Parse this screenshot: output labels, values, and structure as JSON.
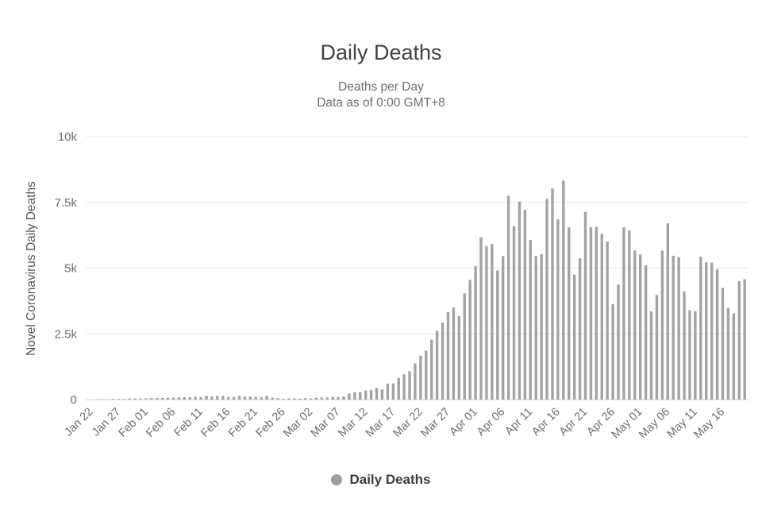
{
  "header": {
    "title": "Daily Deaths",
    "subtitle_line1": "Deaths per Day",
    "subtitle_line2": "Data as of 0:00 GMT+8"
  },
  "legend": {
    "label": "Daily Deaths",
    "dot_color": "#9e9e9e"
  },
  "chart_data": {
    "type": "bar",
    "title": "Daily Deaths",
    "subtitle": "Deaths per Day - Data as of 0:00 GMT+8",
    "xlabel": "",
    "ylabel": "Novel Coronavirus Daily Deaths",
    "legend_entries": [
      "Daily Deaths"
    ],
    "legend_position": "bottom",
    "grid": true,
    "ylim": [
      0,
      10000
    ],
    "ytick_values": [
      0,
      2500,
      5000,
      7500,
      10000
    ],
    "ytick_labels": [
      "0",
      "2.5k",
      "5k",
      "7.5k",
      "10k"
    ],
    "xtick_every": 5,
    "xtick_labels_shown": [
      "Jan 22",
      "Jan 27",
      "Feb 01",
      "Feb 06",
      "Feb 11",
      "Feb 16",
      "Feb 21",
      "Feb 26",
      "Mar 02",
      "Mar 07",
      "Mar 12",
      "Mar 17",
      "Mar 22",
      "Mar 27",
      "Apr 01",
      "Apr 06",
      "Apr 11",
      "Apr 16",
      "Apr 21",
      "Apr 26",
      "May 01",
      "May 06",
      "May 11",
      "May 16"
    ],
    "categories": [
      "Jan 22",
      "Jan 23",
      "Jan 24",
      "Jan 25",
      "Jan 26",
      "Jan 27",
      "Jan 28",
      "Jan 29",
      "Jan 30",
      "Jan 31",
      "Feb 01",
      "Feb 02",
      "Feb 03",
      "Feb 04",
      "Feb 05",
      "Feb 06",
      "Feb 07",
      "Feb 08",
      "Feb 09",
      "Feb 10",
      "Feb 11",
      "Feb 12",
      "Feb 13",
      "Feb 14",
      "Feb 15",
      "Feb 16",
      "Feb 17",
      "Feb 18",
      "Feb 19",
      "Feb 20",
      "Feb 21",
      "Feb 22",
      "Feb 23",
      "Feb 24",
      "Feb 25",
      "Feb 26",
      "Feb 27",
      "Feb 28",
      "Feb 29",
      "Mar 01",
      "Mar 02",
      "Mar 03",
      "Mar 04",
      "Mar 05",
      "Mar 06",
      "Mar 07",
      "Mar 08",
      "Mar 09",
      "Mar 10",
      "Mar 11",
      "Mar 12",
      "Mar 13",
      "Mar 14",
      "Mar 15",
      "Mar 16",
      "Mar 17",
      "Mar 18",
      "Mar 19",
      "Mar 20",
      "Mar 21",
      "Mar 22",
      "Mar 23",
      "Mar 24",
      "Mar 25",
      "Mar 26",
      "Mar 27",
      "Mar 28",
      "Mar 29",
      "Mar 30",
      "Mar 31",
      "Apr 01",
      "Apr 02",
      "Apr 03",
      "Apr 04",
      "Apr 05",
      "Apr 06",
      "Apr 07",
      "Apr 08",
      "Apr 09",
      "Apr 10",
      "Apr 11",
      "Apr 12",
      "Apr 13",
      "Apr 14",
      "Apr 15",
      "Apr 16",
      "Apr 17",
      "Apr 18",
      "Apr 19",
      "Apr 20",
      "Apr 21",
      "Apr 22",
      "Apr 23",
      "Apr 24",
      "Apr 25",
      "Apr 26",
      "Apr 27",
      "Apr 28",
      "Apr 29",
      "Apr 30",
      "May 01",
      "May 02",
      "May 03",
      "May 04",
      "May 05",
      "May 06",
      "May 07",
      "May 08",
      "May 09",
      "May 10",
      "May 11",
      "May 12",
      "May 13",
      "May 14",
      "May 15",
      "May 16",
      "May 17",
      "May 18",
      "May 19",
      "May 20"
    ],
    "values": [
      9,
      8,
      16,
      15,
      25,
      26,
      26,
      38,
      43,
      46,
      46,
      58,
      64,
      66,
      73,
      73,
      86,
      89,
      97,
      108,
      97,
      146,
      122,
      143,
      142,
      106,
      98,
      136,
      116,
      119,
      111,
      97,
      150,
      71,
      53,
      29,
      45,
      48,
      36,
      55,
      43,
      73,
      85,
      81,
      102,
      100,
      118,
      229,
      279,
      290,
      343,
      360,
      439,
      389,
      610,
      614,
      821,
      961,
      1082,
      1372,
      1670,
      1865,
      2280,
      2614,
      2931,
      3325,
      3501,
      3180,
      4040,
      4550,
      5080,
      6170,
      5840,
      5920,
      4910,
      5460,
      7750,
      6590,
      7530,
      7210,
      6070,
      5460,
      5530,
      7630,
      8030,
      6860,
      8330,
      6550,
      4750,
      5370,
      7140,
      6560,
      6570,
      6300,
      6010,
      3630,
      4380,
      6550,
      6430,
      5670,
      5520,
      5110,
      3360,
      3980,
      5660,
      6700,
      5470,
      5420,
      4110,
      3400,
      3360,
      5430,
      5220,
      5210,
      4950,
      4250,
      3490,
      3280,
      4510,
      4580
    ],
    "colors": {
      "bar": "#a3a3a3",
      "grid_line": "#e8e8e8",
      "axis_line": "#d4d4d4",
      "tick_text": "#6e6e6e",
      "ylabel_text": "#565656",
      "title_text": "#414141",
      "subtitle_text": "#6e6e6e",
      "background": "#ffffff"
    }
  }
}
